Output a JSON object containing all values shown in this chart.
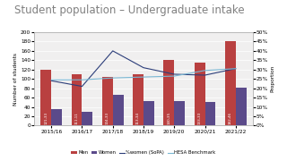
{
  "title": "Student population – Undergraduate intake",
  "categories": [
    "2015/16",
    "2016/17",
    "2017/18",
    "2018/19",
    "2019/20",
    "2020/21",
    "2021/22"
  ],
  "men": [
    120,
    110,
    105,
    110,
    140,
    135,
    180
  ],
  "women": [
    35,
    30,
    65,
    52,
    53,
    50,
    82
  ],
  "nwomen_sofa": [
    0.24,
    0.21,
    0.4,
    0.31,
    0.275,
    0.27,
    0.305
  ],
  "hesa_benchmark": [
    0.245,
    0.245,
    0.255,
    0.26,
    0.265,
    0.295,
    0.305
  ],
  "men_color": "#b94040",
  "women_color": "#5b4a8a",
  "sofa_color": "#2c3e7a",
  "hesa_color": "#7ab8d4",
  "ylabel_left": "Number of students",
  "ylabel_right": "Proportion",
  "ylim_left": [
    0,
    200
  ],
  "ylim_right": [
    0,
    0.5
  ],
  "yticks_left": [
    0,
    20,
    40,
    60,
    80,
    100,
    120,
    140,
    160,
    180,
    200
  ],
  "yticks_right": [
    0.0,
    0.05,
    0.1,
    0.15,
    0.2,
    0.25,
    0.3,
    0.35,
    0.4,
    0.45,
    0.5
  ],
  "ytick_labels_right": [
    "0%",
    "5%",
    "10%",
    "15%",
    "20%",
    "25%",
    "30%",
    "35%",
    "40%",
    "45%",
    "50%"
  ],
  "legend_labels": [
    "Men",
    "Women",
    "%women (SoPA)",
    "HESA Benchmark"
  ],
  "background_color": "#ffffff",
  "chart_bg": "#f0efef",
  "title_color": "#808080",
  "title_fontsize": 8.5,
  "axis_fontsize": 4.2,
  "label_fontsize": 3.8,
  "bar_label_fontsize": 3.0
}
